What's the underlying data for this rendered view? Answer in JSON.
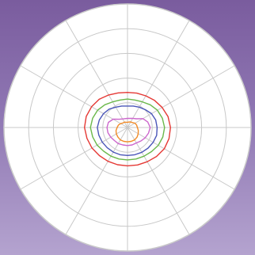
{
  "chart_data": {
    "type": "polar-line",
    "angle_unit": "degrees",
    "angles": [
      0,
      15,
      30,
      45,
      60,
      75,
      90,
      105,
      120,
      135,
      150,
      165,
      180,
      195,
      210,
      225,
      240,
      255,
      270,
      285,
      300,
      315,
      330,
      345
    ],
    "r_range": [
      0,
      5
    ],
    "rings": [
      1,
      2,
      3,
      4,
      5
    ],
    "spoke_count": 12,
    "grid": true,
    "colors": {
      "background_top": "#7a5c9e",
      "background_bottom": "#b4a3cf",
      "plot_fill": "#ffffff",
      "grid": "#c8c8c8",
      "outline": "#d0d0d0"
    },
    "series": [
      {
        "color": "#f28c28",
        "values": [
          0.4,
          0.38,
          0.35,
          0.28,
          0.26,
          0.23,
          0.21,
          0.22,
          0.25,
          0.26,
          0.32,
          0.38,
          0.42,
          0.48,
          0.52,
          0.55,
          0.58,
          0.58,
          0.58,
          0.58,
          0.58,
          0.55,
          0.5,
          0.45
        ]
      },
      {
        "color": "#cc66cc",
        "values": [
          0.92,
          0.85,
          0.72,
          0.5,
          0.43,
          0.38,
          0.37,
          0.37,
          0.4,
          0.47,
          0.67,
          0.8,
          0.83,
          0.82,
          0.78,
          0.75,
          0.75,
          0.73,
          0.73,
          0.73,
          0.72,
          0.77,
          0.83,
          0.88
        ]
      },
      {
        "color": "#4a56b8",
        "values": [
          1.2,
          1.18,
          1.12,
          1.02,
          0.95,
          0.9,
          0.87,
          0.9,
          0.95,
          1.05,
          1.12,
          1.18,
          1.22,
          1.2,
          1.18,
          1.16,
          1.15,
          1.14,
          1.13,
          1.14,
          1.16,
          1.18,
          1.2,
          1.22
        ]
      },
      {
        "color": "#6ab84a",
        "values": [
          1.5,
          1.46,
          1.4,
          1.3,
          1.2,
          1.15,
          1.15,
          1.15,
          1.2,
          1.3,
          1.4,
          1.46,
          1.5,
          1.46,
          1.42,
          1.36,
          1.34,
          1.32,
          1.31,
          1.32,
          1.34,
          1.38,
          1.44,
          1.48
        ]
      },
      {
        "color": "#e53935",
        "values": [
          1.74,
          1.7,
          1.62,
          1.55,
          1.48,
          1.44,
          1.42,
          1.45,
          1.52,
          1.62,
          1.68,
          1.73,
          1.74,
          1.7,
          1.66,
          1.61,
          1.58,
          1.56,
          1.55,
          1.57,
          1.6,
          1.66,
          1.72,
          1.74
        ]
      }
    ]
  }
}
